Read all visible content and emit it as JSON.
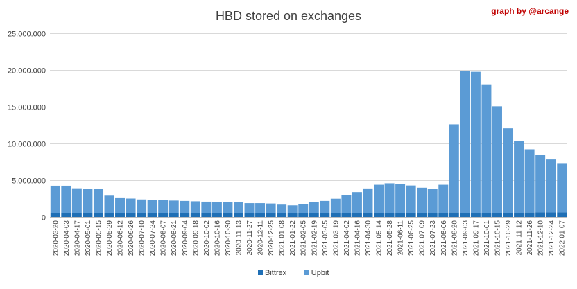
{
  "chart_data": {
    "type": "bar",
    "stacked": true,
    "title": "HBD stored on exchanges",
    "credit": "graph by @arcange",
    "xlabel": "",
    "ylabel": "",
    "ylim": [
      0,
      25000000
    ],
    "yticks": [
      0,
      5000000,
      10000000,
      15000000,
      20000000,
      25000000
    ],
    "ytick_labels": [
      "0",
      "5.000.000",
      "10.000.000",
      "15.000.000",
      "20.000.000",
      "25.000.000"
    ],
    "grid": true,
    "legend_position": "bottom",
    "x_tick_labels": [
      "2020-03-20",
      "2020-04-03",
      "2020-04-17",
      "2020-05-01",
      "2020-05-15",
      "2020-05-29",
      "2020-06-12",
      "2020-06-26",
      "2020-07-10",
      "2020-07-24",
      "2020-08-07",
      "2020-08-21",
      "2020-09-04",
      "2020-09-18",
      "2020-10-02",
      "2020-10-16",
      "2020-10-30",
      "2020-11-13",
      "2020-11-27",
      "2020-12-11",
      "2020-12-25",
      "2021-01-08",
      "2021-01-22",
      "2021-02-05",
      "2021-02-19",
      "2021-03-05",
      "2021-03-19",
      "2021-04-02",
      "2021-04-16",
      "2021-04-30",
      "2021-05-14",
      "2021-05-28",
      "2021-06-11",
      "2021-06-25",
      "2021-07-09",
      "2021-07-23",
      "2021-08-06",
      "2021-08-20",
      "2021-09-03",
      "2021-09-17",
      "2021-10-01",
      "2021-10-15",
      "2021-10-29",
      "2021-11-12",
      "2021-11-26",
      "2021-12-10",
      "2021-12-24",
      "2022-01-07"
    ],
    "series": [
      {
        "name": "Bittrex",
        "color": "#1f6fb5",
        "values": [
          500000,
          500000,
          500000,
          500000,
          500000,
          550000,
          550000,
          500000,
          480000,
          480000,
          480000,
          480000,
          480000,
          480000,
          480000,
          480000,
          480000,
          480000,
          480000,
          480000,
          480000,
          480000,
          480000,
          480000,
          480000,
          480000,
          480000,
          480000,
          480000,
          480000,
          480000,
          480000,
          480000,
          480000,
          480000,
          480000,
          480000,
          600000,
          550000,
          550000,
          550000,
          560000,
          560000,
          560000,
          600000,
          620000,
          620000,
          620000
        ]
      },
      {
        "name": "Upbit",
        "color": "#5b9bd5",
        "values": [
          3750000,
          3750000,
          3400000,
          3350000,
          3350000,
          2350000,
          2100000,
          2000000,
          1900000,
          1850000,
          1800000,
          1750000,
          1700000,
          1650000,
          1600000,
          1550000,
          1550000,
          1500000,
          1400000,
          1400000,
          1350000,
          1200000,
          1100000,
          1300000,
          1550000,
          1700000,
          2000000,
          2500000,
          2900000,
          3400000,
          3900000,
          4100000,
          4000000,
          3800000,
          3500000,
          3300000,
          3900000,
          12000000,
          19300000,
          19200000,
          17500000,
          14500000,
          11500000,
          9800000,
          8600000,
          7800000,
          7200000,
          6700000
        ]
      }
    ]
  }
}
